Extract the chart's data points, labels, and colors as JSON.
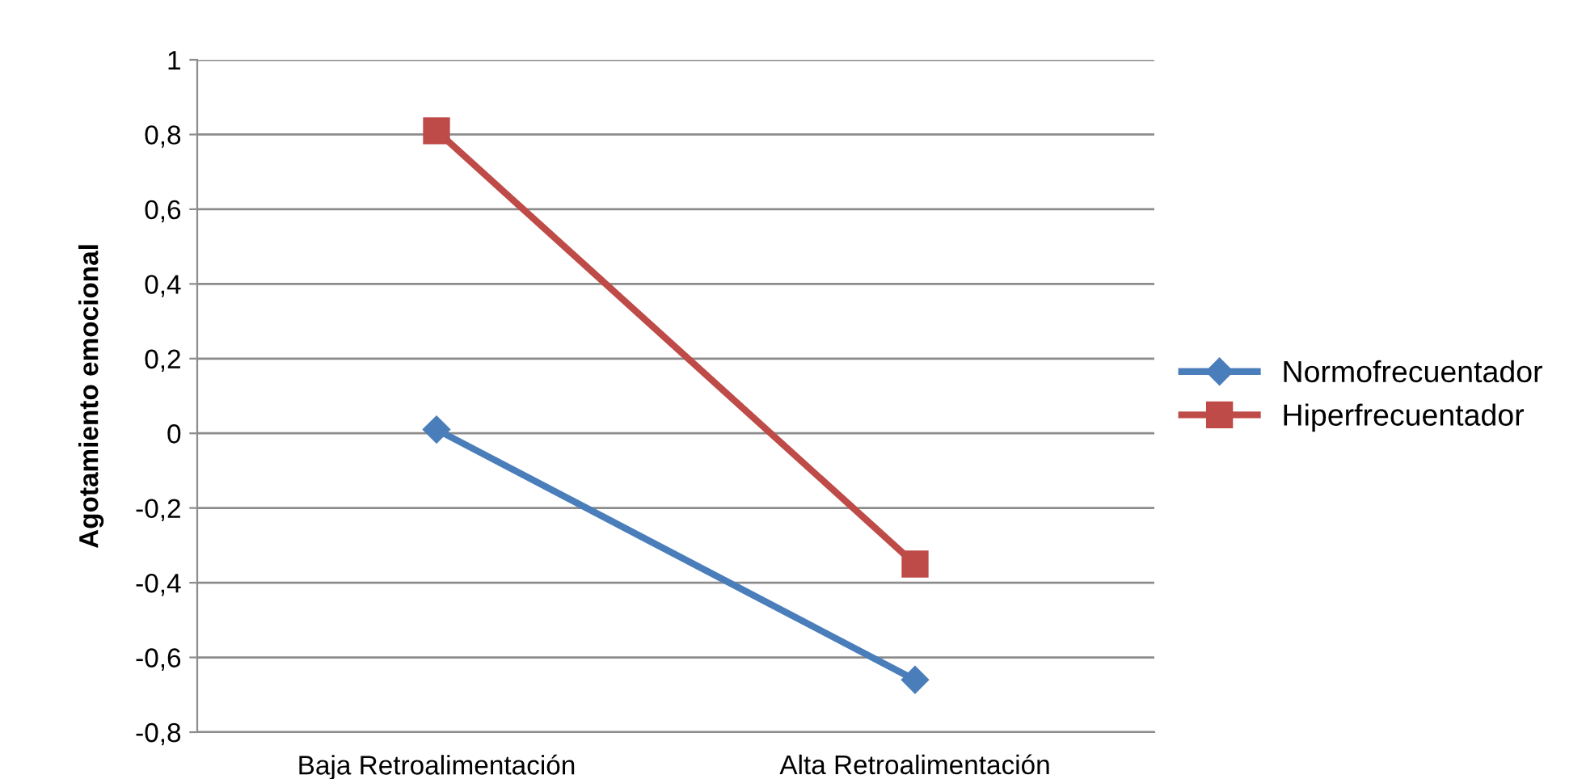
{
  "chart_data": {
    "type": "line",
    "ylabel": "Agotamiento emocional",
    "categories": [
      "Baja Retroalimentación",
      "Alta Retroalimentación"
    ],
    "series": [
      {
        "name": "Normofrecuentador",
        "color": "#4a7ebb",
        "marker": "diamond",
        "values": [
          0.01,
          -0.66
        ]
      },
      {
        "name": "Hiperfrecuentador",
        "color": "#be4b48",
        "marker": "square",
        "values": [
          0.81,
          -0.35
        ]
      }
    ],
    "ylim": [
      -0.8,
      1
    ],
    "yticks": [
      {
        "value": -0.8,
        "label": "-0,8"
      },
      {
        "value": -0.6,
        "label": "-0,6"
      },
      {
        "value": -0.4,
        "label": "-0,4"
      },
      {
        "value": -0.2,
        "label": "-0,2"
      },
      0,
      {
        "value": 0.2,
        "label": "0,2"
      },
      {
        "value": 0.4,
        "label": "0,4"
      },
      {
        "value": 0.6,
        "label": "0,6"
      },
      {
        "value": 0.8,
        "label": "0,8"
      },
      1
    ],
    "grid": "y",
    "legend": "right",
    "line_style": "solid"
  }
}
